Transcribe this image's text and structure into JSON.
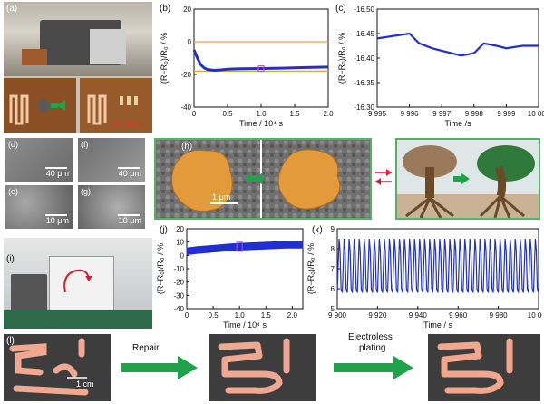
{
  "panels": {
    "a": {
      "label": "(a)",
      "overlay_text": "10 000 s"
    },
    "b": {
      "label": "(b)"
    },
    "c": {
      "label": "(c)"
    },
    "d": {
      "label": "(d)",
      "scale": "40 μm"
    },
    "e": {
      "label": "(e)",
      "scale": "10 μm"
    },
    "f": {
      "label": "(f)",
      "scale": "40 μm"
    },
    "g": {
      "label": "(g)",
      "scale": "10 μm"
    },
    "h": {
      "label": "(h)",
      "scale": "1 μm"
    },
    "i": {
      "label": "(i)"
    },
    "j": {
      "label": "(j)"
    },
    "k": {
      "label": "(k)"
    },
    "l": {
      "label": "(l)",
      "scale": "1 cm",
      "arrow1": "Repair",
      "arrow2_line1": "Electroless",
      "arrow2_line2": "plating"
    }
  },
  "colors": {
    "series": "#1f2fd0",
    "ref_line": "#f0a030",
    "marker": "#cc44cc",
    "arrow": "#1fa24a",
    "red_arrow": "#d02030"
  },
  "chart_data": [
    {
      "id": "b",
      "type": "line",
      "xlabel": "Time / 10⁴ s",
      "ylabel": "(R−R₀)/R₀ / %",
      "xlim": [
        0,
        2.0
      ],
      "ylim": [
        -40,
        20
      ],
      "xticks": [
        "0",
        "0.5",
        "1.0",
        "1.5",
        "2.0"
      ],
      "xtick_values": [
        0,
        0.5,
        1.0,
        1.5,
        2.0
      ],
      "yticks": [
        "20",
        "0",
        "-20",
        "-40"
      ],
      "ytick_values": [
        20,
        0,
        -20,
        -40
      ],
      "ref_lines": [
        0,
        -18
      ],
      "series": [
        {
          "x": [
            0,
            0.05,
            0.1,
            0.15,
            0.2,
            0.3,
            0.4,
            0.5,
            0.7,
            1.0,
            1.3,
            1.6,
            2.0
          ],
          "y": [
            -5,
            -10,
            -14,
            -16,
            -17,
            -17.5,
            -17.2,
            -16.8,
            -16.5,
            -16.4,
            -16.2,
            -15.8,
            -15.5
          ]
        }
      ]
    },
    {
      "id": "c",
      "type": "line",
      "xlabel": "Time /s",
      "ylabel": "(R−R₀)/R₀ / %",
      "xlim": [
        9995,
        10000
      ],
      "ylim": [
        -16.5,
        -16.3
      ],
      "xticks": [
        "9 995",
        "9 996",
        "9 997",
        "9 998",
        "9 999",
        "10 000"
      ],
      "xtick_values": [
        9995,
        9996,
        9997,
        9998,
        9999,
        10000
      ],
      "yticks": [
        "-16.50",
        "-16.45",
        "-16.40",
        "-16.35",
        "-16.30"
      ],
      "ytick_values": [
        -16.5,
        -16.45,
        -16.4,
        -16.35,
        -16.3
      ],
      "y_inverted": true,
      "series": [
        {
          "x": [
            9995,
            9995.5,
            9996,
            9996.3,
            9996.7,
            9997,
            9997.3,
            9997.6,
            9998,
            9998.3,
            9998.7,
            9999,
            9999.5,
            10000
          ],
          "y": [
            -16.44,
            -16.445,
            -16.45,
            -16.43,
            -16.42,
            -16.415,
            -16.41,
            -16.405,
            -16.41,
            -16.43,
            -16.425,
            -16.42,
            -16.425,
            -16.425
          ]
        }
      ]
    },
    {
      "id": "j",
      "type": "line",
      "xlabel": "Time / 10⁴ s",
      "ylabel": "(R−R₀)/R₀ / %",
      "xlim": [
        0,
        2.2
      ],
      "ylim": [
        -40,
        20
      ],
      "xticks": [
        "0",
        "0.5",
        "1.0",
        "1.5",
        "2.0"
      ],
      "xtick_values": [
        0,
        0.5,
        1.0,
        1.5,
        2.0
      ],
      "yticks": [
        "20",
        "10",
        "0",
        "-10",
        "-20",
        "-30",
        "-40"
      ],
      "ytick_values": [
        20,
        10,
        0,
        -10,
        -20,
        -30,
        -40
      ],
      "series": [
        {
          "x": [
            0,
            0.2,
            0.5,
            0.8,
            1.0,
            1.3,
            1.6,
            1.9,
            2.2
          ],
          "y": [
            3,
            4,
            5,
            6,
            6.5,
            7,
            7.5,
            8,
            8
          ]
        }
      ]
    },
    {
      "id": "k",
      "type": "line",
      "xlabel": "Time / s",
      "ylabel": "(R−R₀)/R₀ / %",
      "xlim": [
        9900,
        10000
      ],
      "ylim": [
        5,
        9
      ],
      "xticks": [
        "9 900",
        "9 920",
        "9 940",
        "9 960",
        "9 980",
        "10 000"
      ],
      "xtick_values": [
        9900,
        9920,
        9940,
        9960,
        9980,
        10000
      ],
      "yticks": [
        "9",
        "8",
        "7",
        "6",
        "5"
      ],
      "ytick_values": [
        9,
        8,
        7,
        6,
        5
      ],
      "cycles": 40,
      "peak": 8.5,
      "trough": 5.8
    }
  ]
}
